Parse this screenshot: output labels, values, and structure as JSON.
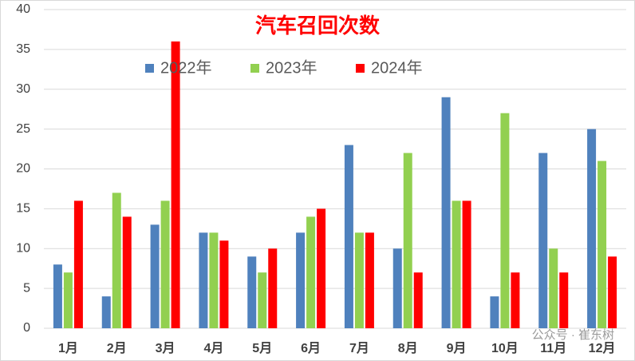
{
  "chart_data": {
    "type": "bar",
    "title": "汽车召回次数",
    "categories": [
      "1月",
      "2月",
      "3月",
      "4月",
      "5月",
      "6月",
      "7月",
      "8月",
      "9月",
      "10月",
      "11月",
      "12月"
    ],
    "series": [
      {
        "name": "2022年",
        "color": "#4f81bd",
        "values": [
          8,
          4,
          13,
          12,
          9,
          12,
          23,
          10,
          29,
          4,
          22,
          25
        ]
      },
      {
        "name": "2023年",
        "color": "#92d050",
        "values": [
          7,
          17,
          16,
          12,
          7,
          14,
          12,
          22,
          16,
          27,
          10,
          21
        ]
      },
      {
        "name": "2024年",
        "color": "#ff0000",
        "values": [
          16,
          14,
          36,
          11,
          10,
          15,
          12,
          7,
          16,
          7,
          7,
          9
        ]
      }
    ],
    "ylim": [
      0,
      40
    ],
    "yticks": [
      0,
      5,
      10,
      15,
      20,
      25,
      30,
      35,
      40
    ],
    "grid": true,
    "legend": "top",
    "watermark": "公众号 · 崔东树"
  }
}
